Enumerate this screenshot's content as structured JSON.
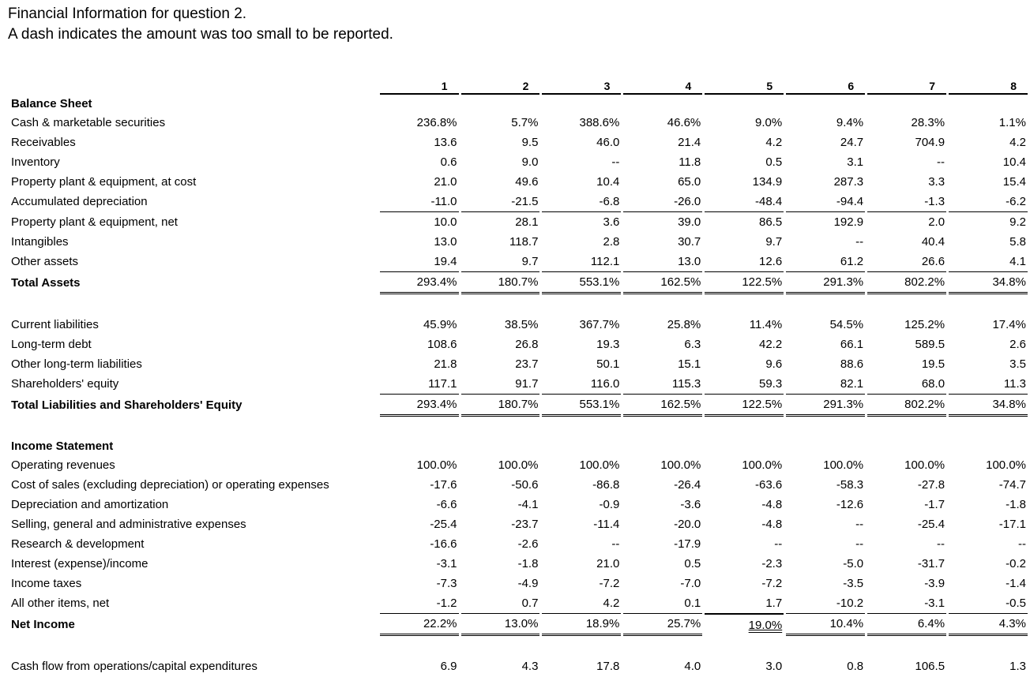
{
  "title": "Financial Information for question 2.",
  "subtitle": "A dash indicates the amount was too small to be reported.",
  "columns": [
    "1",
    "2",
    "3",
    "4",
    "5",
    "6",
    "7",
    "8"
  ],
  "sections": [
    {
      "heading": "Balance Sheet",
      "rows": [
        {
          "label": "Cash & marketable securities",
          "values": [
            "236.8%",
            "5.7%",
            "388.6%",
            "46.6%",
            "9.0%",
            "9.4%",
            "28.3%",
            "1.1%"
          ]
        },
        {
          "label": "Receivables",
          "values": [
            "13.6",
            "9.5",
            "46.0",
            "21.4",
            "4.2",
            "24.7",
            "704.9",
            "4.2"
          ]
        },
        {
          "label": "Inventory",
          "values": [
            "0.6",
            "9.0",
            "--",
            "11.8",
            "0.5",
            "3.1",
            "--",
            "10.4"
          ]
        },
        {
          "label": "Property plant & equipment, at cost",
          "values": [
            "21.0",
            "49.6",
            "10.4",
            "65.0",
            "134.9",
            "287.3",
            "3.3",
            "15.4"
          ]
        },
        {
          "label": "Accumulated depreciation",
          "values": [
            "-11.0",
            "-21.5",
            "-6.8",
            "-26.0",
            "-48.4",
            "-94.4",
            "-1.3",
            "-6.2"
          ]
        },
        {
          "label": "Property plant & equipment, net",
          "values": [
            "10.0",
            "28.1",
            "3.6",
            "39.0",
            "86.5",
            "192.9",
            "2.0",
            "9.2"
          ],
          "style": "topline"
        },
        {
          "label": "Intangibles",
          "values": [
            "13.0",
            "118.7",
            "2.8",
            "30.7",
            "9.7",
            "--",
            "40.4",
            "5.8"
          ]
        },
        {
          "label": "Other assets",
          "values": [
            "19.4",
            "9.7",
            "112.1",
            "13.0",
            "12.6",
            "61.2",
            "26.6",
            "4.1"
          ]
        },
        {
          "label": "Total Assets",
          "values": [
            "293.4%",
            "180.7%",
            "553.1%",
            "162.5%",
            "122.5%",
            "291.3%",
            "802.2%",
            "34.8%"
          ],
          "style": "total"
        }
      ]
    },
    {
      "heading": "",
      "rows": [
        {
          "label": "Current liabilities",
          "values": [
            "45.9%",
            "38.5%",
            "367.7%",
            "25.8%",
            "11.4%",
            "54.5%",
            "125.2%",
            "17.4%"
          ]
        },
        {
          "label": "Long-term debt",
          "values": [
            "108.6",
            "26.8",
            "19.3",
            "6.3",
            "42.2",
            "66.1",
            "589.5",
            "2.6"
          ]
        },
        {
          "label": "Other long-term liabilities",
          "values": [
            "21.8",
            "23.7",
            "50.1",
            "15.1",
            "9.6",
            "88.6",
            "19.5",
            "3.5"
          ]
        },
        {
          "label": "Shareholders' equity",
          "values": [
            "117.1",
            "91.7",
            "116.0",
            "115.3",
            "59.3",
            "82.1",
            "68.0",
            "11.3"
          ]
        },
        {
          "label": "Total Liabilities and Shareholders' Equity",
          "values": [
            "293.4%",
            "180.7%",
            "553.1%",
            "162.5%",
            "122.5%",
            "291.3%",
            "802.2%",
            "34.8%"
          ],
          "style": "total"
        }
      ]
    },
    {
      "heading": "Income Statement",
      "rows": [
        {
          "label": "Operating revenues",
          "values": [
            "100.0%",
            "100.0%",
            "100.0%",
            "100.0%",
            "100.0%",
            "100.0%",
            "100.0%",
            "100.0%"
          ]
        },
        {
          "label": "Cost of sales (excluding depreciation) or operating expenses",
          "values": [
            "-17.6",
            "-50.6",
            "-86.8",
            "-26.4",
            "-63.6",
            "-58.3",
            "-27.8",
            "-74.7"
          ]
        },
        {
          "label": "Depreciation and amortization",
          "values": [
            "-6.6",
            "-4.1",
            "-0.9",
            "-3.6",
            "-4.8",
            "-12.6",
            "-1.7",
            "-1.8"
          ]
        },
        {
          "label": "Selling, general and administrative expenses",
          "values": [
            "-25.4",
            "-23.7",
            "-11.4",
            "-20.0",
            "-4.8",
            "--",
            "-25.4",
            "-17.1"
          ]
        },
        {
          "label": "Research & development",
          "values": [
            "-16.6",
            "-2.6",
            "--",
            "-17.9",
            "--",
            "--",
            "--",
            "--"
          ]
        },
        {
          "label": "Interest (expense)/income",
          "values": [
            "-3.1",
            "-1.8",
            "21.0",
            "0.5",
            "-2.3",
            "-5.0",
            "-31.7",
            "-0.2"
          ]
        },
        {
          "label": "Income taxes",
          "values": [
            "-7.3",
            "-4.9",
            "-7.2",
            "-7.0",
            "-7.2",
            "-3.5",
            "-3.9",
            "-1.4"
          ]
        },
        {
          "label": "All other items, net",
          "values": [
            "-1.2",
            "0.7",
            "4.2",
            "0.1",
            "1.7",
            "-10.2",
            "-3.1",
            "-0.5"
          ]
        },
        {
          "label": "Net Income",
          "values": [
            "22.2%",
            "13.0%",
            "18.9%",
            "25.7%",
            "19.0%",
            "10.4%",
            "6.4%",
            "4.3%"
          ],
          "style": "total",
          "special_col": 4
        }
      ]
    },
    {
      "heading": "",
      "rows": [
        {
          "label": "Cash flow from operations/capital expenditures",
          "values": [
            "6.9",
            "4.3",
            "17.8",
            "4.0",
            "3.0",
            "0.8",
            "106.5",
            "1.3"
          ]
        }
      ]
    }
  ]
}
